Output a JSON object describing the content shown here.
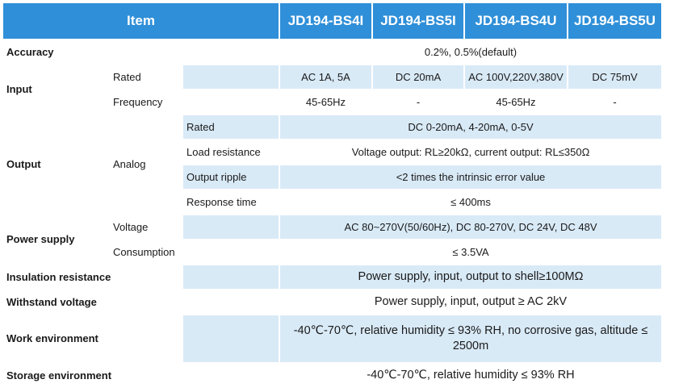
{
  "header": {
    "item": "Item",
    "models": [
      "JD194-BS4I",
      "JD194-BS5I",
      "JD194-BS4U",
      "JD194-BS5U"
    ]
  },
  "rows": {
    "accuracy": {
      "label": "Accuracy",
      "value": "0.2%, 0.5%(default)"
    },
    "input": {
      "label": "Input",
      "rated": {
        "label": "Rated",
        "values": [
          "AC 1A, 5A",
          "DC 20mA",
          "AC 100V,220V,380V",
          "DC 75mV"
        ]
      },
      "frequency": {
        "label": "Frequency",
        "values": [
          "45-65Hz",
          "-",
          "45-65Hz",
          "-"
        ]
      }
    },
    "output": {
      "label": "Output",
      "analog": "Analog",
      "rated": {
        "label": "Rated",
        "value": "DC 0-20mA,   4-20mA,   0-5V"
      },
      "load": {
        "label": "Load resistance",
        "value": "Voltage output: RL≥20kΩ, current output: RL≤350Ω"
      },
      "ripple": {
        "label": "Output ripple",
        "value": "<2 times the intrinsic error value"
      },
      "response": {
        "label": "Response time",
        "value": "≤ 400ms"
      }
    },
    "power": {
      "label": "Power supply",
      "voltage": {
        "label": "Voltage",
        "value": "AC 80~270V(50/60Hz), DC 80-270V, DC 24V, DC 48V"
      },
      "consumption": {
        "label": "Consumption",
        "value": "≤ 3.5VA"
      }
    },
    "insulation": {
      "label": "Insulation resistance",
      "value": "Power supply, input, output to shell≥100MΩ"
    },
    "withstand": {
      "label": "Withstand voltage",
      "value": "Power supply, input, output ≥ AC 2kV"
    },
    "work": {
      "label": "Work environment",
      "value": "-40℃-70℃, relative humidity ≤ 93% RH, no corrosive gas, altitude ≤ 2500m"
    },
    "storage": {
      "label": "Storage environment",
      "value": "-40℃-70℃, relative humidity ≤ 93% RH"
    }
  }
}
